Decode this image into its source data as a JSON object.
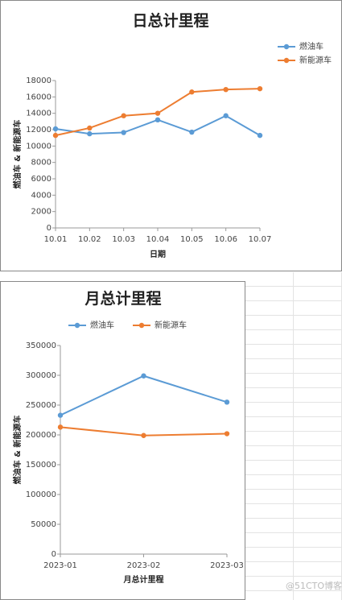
{
  "chart_data": [
    {
      "type": "line",
      "title": "日总计里程",
      "x_label": "日期",
      "y_label": "燃油车 & 新能源车",
      "categories": [
        "10.01",
        "10.02",
        "10.03",
        "10.04",
        "10.05",
        "10.06",
        "10.07"
      ],
      "series": [
        {
          "name": "燃油车",
          "color": "#5b9bd5",
          "values": [
            12100,
            11500,
            11650,
            13200,
            11700,
            13700,
            11300
          ]
        },
        {
          "name": "新能源车",
          "color": "#ed7d31",
          "values": [
            11300,
            12200,
            13700,
            14000,
            16600,
            16900,
            17000
          ]
        }
      ],
      "ylim": [
        0,
        18000
      ],
      "yticks": [
        0,
        2000,
        4000,
        6000,
        8000,
        10000,
        12000,
        14000,
        16000,
        18000
      ],
      "grid": false,
      "legend": "top-right"
    },
    {
      "type": "line",
      "title": "月总计里程",
      "x_label": "月总计里程",
      "y_label": "燃油车 & 新能源车",
      "categories": [
        "2023-01",
        "2023-02",
        "2023-03"
      ],
      "series": [
        {
          "name": "燃油车",
          "color": "#5b9bd5",
          "values": [
            233000,
            299000,
            255000
          ]
        },
        {
          "name": "新能源车",
          "color": "#ed7d31",
          "values": [
            213000,
            199000,
            202000
          ]
        }
      ],
      "ylim": [
        0,
        350000
      ],
      "yticks": [
        0,
        50000,
        100000,
        150000,
        200000,
        250000,
        300000,
        350000
      ],
      "grid": false,
      "legend": "top"
    }
  ],
  "watermark": "@51CTO博客"
}
